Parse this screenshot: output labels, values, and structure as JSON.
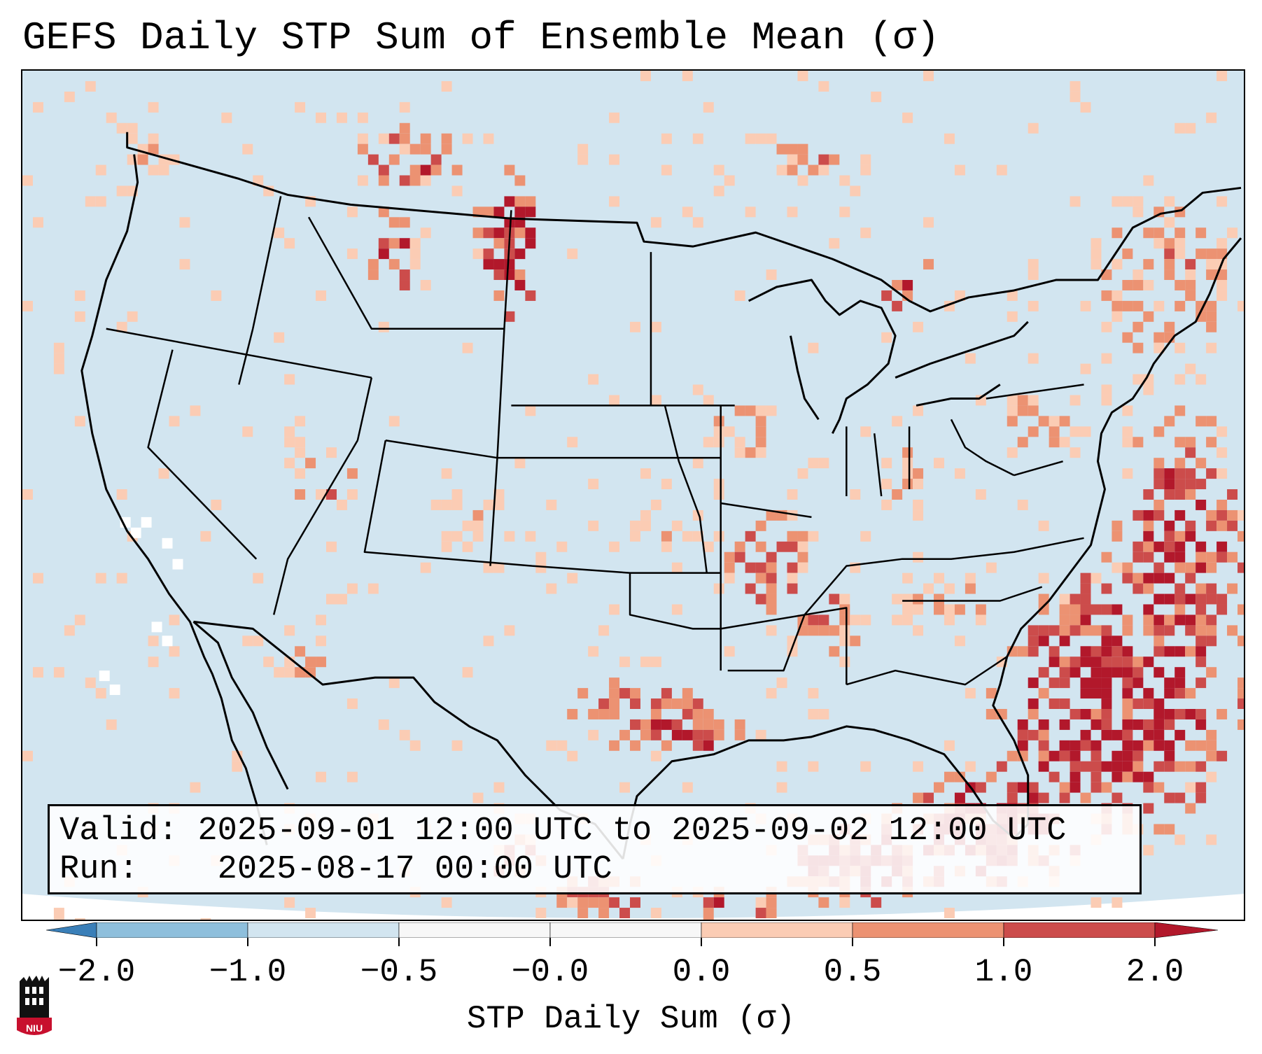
{
  "title": "GEFS Daily STP Sum of Ensemble Mean (σ)",
  "info": {
    "valid_label": "Valid:",
    "valid_value": "2025-09-01 12:00 UTC to 2025-09-02 12:00 UTC",
    "run_label": "Run:",
    "run_value": "2025-08-17 00:00 UTC"
  },
  "colorbar": {
    "label": "STP Daily Sum (σ)",
    "ticks": [
      "−2.0",
      "−1.0",
      "−0.5",
      "−0.0",
      "0.0",
      "0.5",
      "1.0",
      "2.0"
    ],
    "colors": [
      "#3a7fb8",
      "#8ebfdc",
      "#d2e5f0",
      "#f7f7f7",
      "#f7f7f7",
      "#fbccb4",
      "#ec9272",
      "#cc4c4b",
      "#b2182b"
    ]
  },
  "map": {
    "background_color": "#d2e5f0",
    "outside_color": "#ffffff",
    "line_color": "#000000"
  },
  "logo": {
    "text": "NIU",
    "colors": {
      "shield": "#c8102e",
      "tower": "#111111"
    }
  }
}
